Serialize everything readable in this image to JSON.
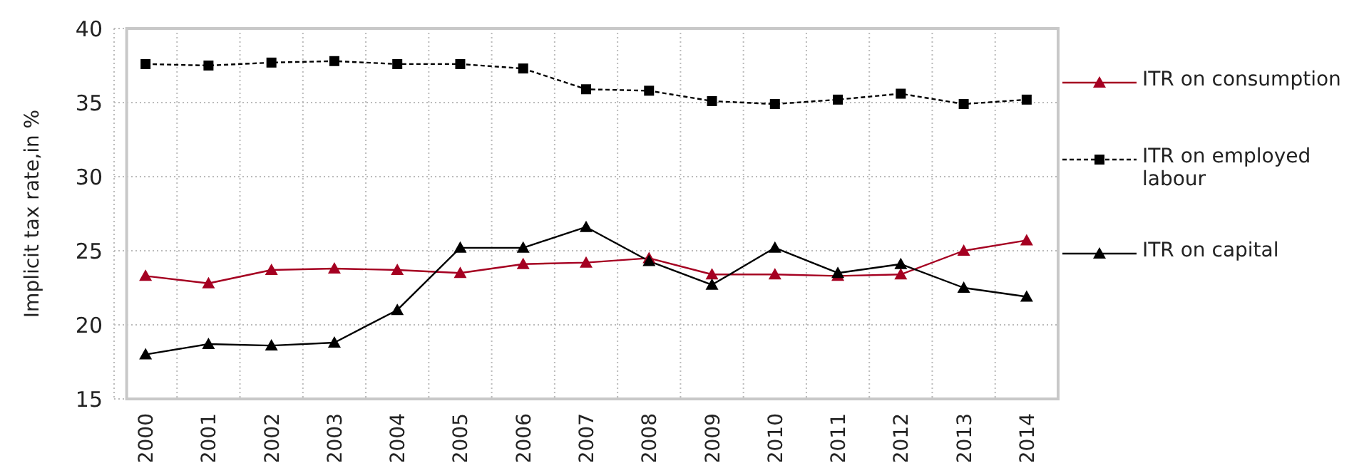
{
  "chart_data": {
    "type": "line",
    "ylabel": "Implicit tax rate,in %",
    "categories": [
      "2000",
      "2001",
      "2002",
      "2003",
      "2004",
      "2005",
      "2006",
      "2007",
      "2008",
      "2009",
      "2010",
      "2011",
      "2012",
      "2013",
      "2014"
    ],
    "ylim": [
      15,
      40
    ],
    "yticks": [
      15,
      20,
      25,
      30,
      35,
      40
    ],
    "grid": true,
    "legend": "right",
    "series": [
      {
        "name": "ITR on consumption",
        "color": "#a50021",
        "marker": "triangle",
        "line_style": "solid",
        "values": [
          23.3,
          22.8,
          23.7,
          23.8,
          23.7,
          23.5,
          24.1,
          24.2,
          24.5,
          23.4,
          23.4,
          23.3,
          23.4,
          25.0,
          25.7
        ]
      },
      {
        "name": "ITR on employed labour",
        "color": "#000000",
        "marker": "square",
        "line_style": "dashed",
        "values": [
          37.6,
          37.5,
          37.7,
          37.8,
          37.6,
          37.6,
          37.3,
          35.9,
          35.8,
          35.1,
          34.9,
          35.2,
          35.6,
          34.9,
          35.2
        ]
      },
      {
        "name": "ITR on capital",
        "color": "#000000",
        "marker": "triangle",
        "line_style": "solid",
        "values": [
          18.0,
          18.7,
          18.6,
          18.8,
          21.0,
          25.2,
          25.2,
          26.6,
          24.3,
          22.7,
          25.2,
          23.5,
          24.1,
          22.5,
          21.9
        ]
      }
    ]
  }
}
